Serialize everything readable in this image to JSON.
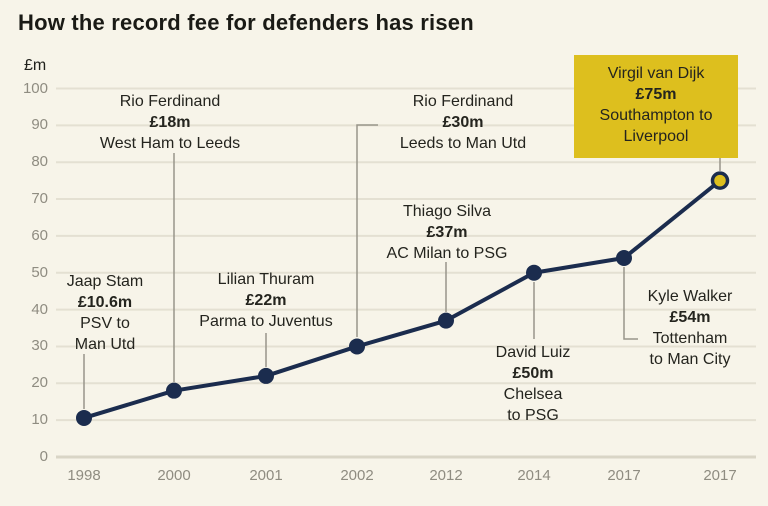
{
  "title": "How the record fee for defenders has risen",
  "colors": {
    "background": "#f7f4e9",
    "line": "#1b2c4e",
    "highlight": "#ddbf1e",
    "grid": "#e4e0d2",
    "zero_line": "#d9d5c6",
    "axis_text": "#8f8c81",
    "label_text": "#24241e",
    "leader": "#98958a"
  },
  "chart_data": {
    "type": "line",
    "title": "How the record fee for defenders has risen",
    "ylabel": "£m",
    "categories": [
      "1998",
      "2000",
      "2001",
      "2002",
      "2012",
      "2014",
      "2017",
      "2017"
    ],
    "values": [
      10.6,
      18,
      22,
      30,
      37,
      50,
      54,
      75
    ],
    "ylim": [
      0,
      100
    ],
    "ytick_step": 10,
    "y_tick_labels": [
      "0",
      "10",
      "20",
      "30",
      "40",
      "50",
      "60",
      "70",
      "80",
      "90",
      "100"
    ],
    "grid": true,
    "legend": "none",
    "annotations": [
      {
        "player": "Jaap Stam",
        "fee": "£10.6m",
        "move_lines": [
          "PSV to",
          "Man Utd"
        ],
        "point_index": 0,
        "highlighted": false
      },
      {
        "player": "Rio Ferdinand",
        "fee": "£18m",
        "move_lines": [
          "West Ham to Leeds"
        ],
        "point_index": 1,
        "highlighted": false
      },
      {
        "player": "Lilian Thuram",
        "fee": "£22m",
        "move_lines": [
          "Parma to Juventus"
        ],
        "point_index": 2,
        "highlighted": false
      },
      {
        "player": "Rio Ferdinand",
        "fee": "£30m",
        "move_lines": [
          "Leeds to Man Utd"
        ],
        "point_index": 3,
        "highlighted": false
      },
      {
        "player": "Thiago Silva",
        "fee": "£37m",
        "move_lines": [
          "AC Milan to PSG"
        ],
        "point_index": 4,
        "highlighted": false
      },
      {
        "player": "David Luiz",
        "fee": "£50m",
        "move_lines": [
          "Chelsea",
          "to PSG"
        ],
        "point_index": 5,
        "highlighted": false
      },
      {
        "player": "Kyle Walker",
        "fee": "£54m",
        "move_lines": [
          "Tottenham",
          "to Man City"
        ],
        "point_index": 6,
        "highlighted": false
      },
      {
        "player": "Virgil van Dijk",
        "fee": "£75m",
        "move_lines": [
          "Southampton to",
          "Liverpool"
        ],
        "point_index": 7,
        "highlighted": true
      }
    ]
  }
}
